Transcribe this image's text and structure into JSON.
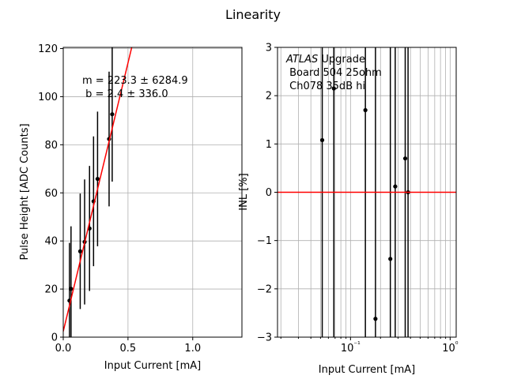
{
  "figure": {
    "title": "Linearity"
  },
  "chart_data": [
    {
      "type": "scatter",
      "xlabel": "Input Current [mA]",
      "ylabel": "Pulse Height [ADC Counts]",
      "xlim": [
        0,
        1.38
      ],
      "ylim": [
        0,
        120.5
      ],
      "xscale": "linear",
      "xticks": [
        0.0,
        0.5,
        1.0
      ],
      "xtick_labels": [
        "0.0",
        "0.5",
        "1.0"
      ],
      "yticks": [
        0,
        20,
        40,
        60,
        80,
        100,
        120
      ],
      "ytick_labels": [
        "0",
        "20",
        "40",
        "60",
        "80",
        "100",
        "120"
      ],
      "grid": true,
      "series": [
        {
          "kind": "points_with_errorbars",
          "color": "#000000",
          "x": [
            0.048,
            0.06,
            0.131,
            0.165,
            0.203,
            0.234,
            0.265,
            0.354,
            0.378
          ],
          "y": [
            15.2,
            20.1,
            35.7,
            39.6,
            45.2,
            56.5,
            65.8,
            82.4,
            92.7
          ],
          "yerr": [
            24.0,
            26.0,
            24.0,
            26.0,
            26.0,
            27.0,
            28.0,
            28.0,
            28.0
          ]
        },
        {
          "kind": "fit_line",
          "color": "#ff0000",
          "slope": 223.3,
          "intercept": 2.4
        }
      ],
      "annotations": [
        "m = 223.3 ± 6284.9",
        " b = 2.4 ± 336.0"
      ]
    },
    {
      "type": "scatter",
      "xlabel": "Input Current [mA]",
      "ylabel": "INL [%]",
      "xscale": "log",
      "xlim": [
        0.0185,
        1.15
      ],
      "ylim": [
        -3,
        3
      ],
      "xticks": [
        0.1,
        1.0
      ],
      "xtick_labels": [
        "10⁻¹",
        "10⁰"
      ],
      "yticks": [
        -3,
        -2,
        -1,
        0,
        1,
        2,
        3
      ],
      "ytick_labels": [
        "−3",
        "−2",
        "−1",
        "0",
        "1",
        "2",
        "3"
      ],
      "grid": true,
      "series": [
        {
          "kind": "points_with_errorbars",
          "color": "#000000",
          "x": [
            0.052,
            0.068,
            0.141,
            0.178,
            0.251,
            0.281,
            0.354,
            0.378
          ],
          "y": [
            1.08,
            2.15,
            1.7,
            -2.62,
            -1.38,
            0.12,
            0.7,
            0.0
          ],
          "yerr": [
            100,
            100,
            100,
            100,
            100,
            100,
            100,
            100
          ]
        },
        {
          "kind": "hline",
          "color": "#ff0000",
          "y": 0
        }
      ],
      "annotations": {
        "line1_italic": "ATLAS",
        "line1_rest": " Upgrade",
        "line2": " Board 504 25ohm",
        "line3": " Ch078 35dB hi"
      }
    }
  ]
}
